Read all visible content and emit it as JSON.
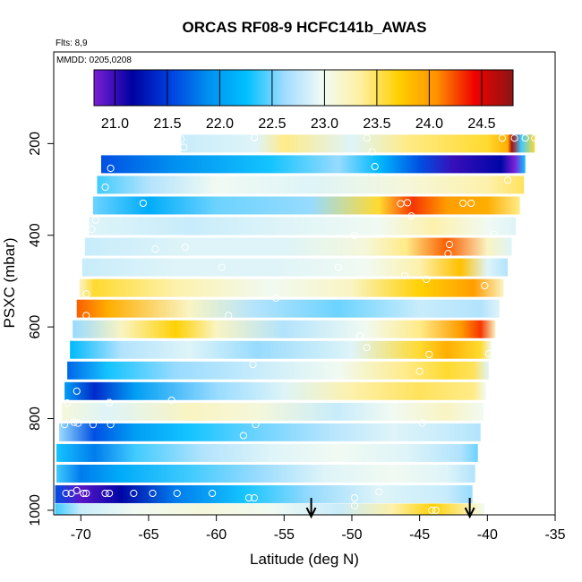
{
  "chart_data": {
    "type": "heatmap",
    "title": "ORCAS RF08-9 HCFC141b_AWAS",
    "flights_label": "Flts: 8,9",
    "dates_label": "MMDD: 0205,0208",
    "xlabel": "Latitude (deg N)",
    "ylabel": "PSXC (mbar)",
    "xlim": [
      -72,
      -35
    ],
    "ylim": [
      1010,
      0
    ],
    "x_ticks": [
      -70,
      -65,
      -60,
      -55,
      -50,
      -45,
      -40,
      -35
    ],
    "x_tick_labels": [
      "-70",
      "-65",
      "-60",
      "-55",
      "-50",
      "-45",
      "-40",
      "-35"
    ],
    "y_ticks": [
      200,
      400,
      600,
      800,
      1000
    ],
    "y_tick_labels": [
      "200",
      "400",
      "600",
      "800",
      "1000"
    ],
    "colorbar": {
      "range": [
        20.8,
        24.8
      ],
      "ticks": [
        21.0,
        21.5,
        22.0,
        22.5,
        23.0,
        23.5,
        24.0,
        24.5
      ],
      "tick_labels": [
        "21.0",
        "21.5",
        "22.0",
        "22.5",
        "23.0",
        "23.5",
        "24.0",
        "24.5"
      ],
      "colors": [
        "#7a1fd6",
        "#0000a0",
        "#0040e0",
        "#0090f0",
        "#00c0ff",
        "#a0dcff",
        "#f0fbf6",
        "#fff0a0",
        "#ffd000",
        "#ff9000",
        "#f00000",
        "#8b1515"
      ]
    },
    "arrow_markers_lat": [
      -53,
      -41.3
    ],
    "layers": [
      {
        "p": 200,
        "lat_range": [
          -62.6,
          -36.5
        ],
        "points": [
          [
            -62.6,
            22.8
          ],
          [
            -57,
            22.9
          ],
          [
            -55,
            23.4
          ],
          [
            -50,
            22.9
          ],
          [
            -46,
            23.4
          ],
          [
            -40,
            23.6
          ],
          [
            -38.5,
            23.9
          ],
          [
            -38.2,
            24.7
          ],
          [
            -37.5,
            22.4
          ],
          [
            -36.5,
            23.6
          ]
        ]
      },
      {
        "p": 245,
        "lat_range": [
          -68.5,
          -37.2
        ],
        "points": [
          [
            -68.5,
            21.6
          ],
          [
            -63,
            21.9
          ],
          [
            -56,
            22.3
          ],
          [
            -51,
            22.6
          ],
          [
            -48,
            22.2
          ],
          [
            -45,
            21.6
          ],
          [
            -42.5,
            21.0
          ],
          [
            -39,
            21.2
          ],
          [
            -38,
            20.8
          ],
          [
            -37.2,
            22.3
          ]
        ]
      },
      {
        "p": 290,
        "lat_range": [
          -68.8,
          -37.3
        ],
        "points": [
          [
            -68.8,
            22.4
          ],
          [
            -65,
            22.7
          ],
          [
            -60,
            23.0
          ],
          [
            -53,
            22.9
          ],
          [
            -46,
            23.1
          ],
          [
            -40,
            23.3
          ],
          [
            -37.3,
            23.5
          ]
        ]
      },
      {
        "p": 335,
        "lat_range": [
          -69.1,
          -37.6
        ],
        "points": [
          [
            -69.1,
            22.5
          ],
          [
            -65,
            22.1
          ],
          [
            -60,
            22.5
          ],
          [
            -53,
            22.6
          ],
          [
            -48,
            23.6
          ],
          [
            -45.5,
            24.3
          ],
          [
            -43,
            24.0
          ],
          [
            -40,
            23.9
          ],
          [
            -37.6,
            23.4
          ]
        ]
      },
      {
        "p": 380,
        "lat_range": [
          -69.4,
          -37.9
        ],
        "points": [
          [
            -69.4,
            22.9
          ],
          [
            -62,
            22.8
          ],
          [
            -55,
            22.9
          ],
          [
            -48,
            23.0
          ],
          [
            -44,
            23.3
          ],
          [
            -40,
            23.0
          ],
          [
            -37.9,
            22.9
          ]
        ]
      },
      {
        "p": 425,
        "lat_range": [
          -69.7,
          -38.2
        ],
        "points": [
          [
            -69.7,
            22.8
          ],
          [
            -62,
            22.9
          ],
          [
            -55,
            22.9
          ],
          [
            -49,
            23.1
          ],
          [
            -46,
            23.4
          ],
          [
            -43,
            24.2
          ],
          [
            -40,
            23.2
          ],
          [
            -38.2,
            22.9
          ]
        ]
      },
      {
        "p": 470,
        "lat_range": [
          -69.9,
          -38.5
        ],
        "points": [
          [
            -69.9,
            22.8
          ],
          [
            -63,
            22.9
          ],
          [
            -56,
            22.9
          ],
          [
            -49,
            23.0
          ],
          [
            -45,
            23.3
          ],
          [
            -42,
            23.8
          ],
          [
            -40,
            22.9
          ],
          [
            -38.5,
            22.7
          ]
        ]
      },
      {
        "p": 515,
        "lat_range": [
          -70.1,
          -38.8
        ],
        "points": [
          [
            -70.1,
            23.2
          ],
          [
            -69,
            23.6
          ],
          [
            -63,
            23.3
          ],
          [
            -56,
            23.0
          ],
          [
            -50,
            23.2
          ],
          [
            -45,
            23.7
          ],
          [
            -41,
            24.0
          ],
          [
            -38.8,
            23.2
          ]
        ]
      },
      {
        "p": 560,
        "lat_range": [
          -70.3,
          -39.1
        ],
        "points": [
          [
            -70.3,
            24.2
          ],
          [
            -68,
            23.9
          ],
          [
            -62,
            23.2
          ],
          [
            -57,
            22.7
          ],
          [
            -51,
            22.5
          ],
          [
            -45,
            22.8
          ],
          [
            -40.5,
            22.7
          ],
          [
            -39.1,
            22.9
          ]
        ]
      },
      {
        "p": 605,
        "lat_range": [
          -70.6,
          -39.4
        ],
        "points": [
          [
            -70.6,
            22.6
          ],
          [
            -67,
            23.2
          ],
          [
            -63,
            23.7
          ],
          [
            -60,
            23.2
          ],
          [
            -55,
            22.7
          ],
          [
            -49,
            23.0
          ],
          [
            -45,
            23.4
          ],
          [
            -42,
            24.0
          ],
          [
            -40.5,
            24.3
          ],
          [
            -39.4,
            23.2
          ]
        ]
      },
      {
        "p": 650,
        "lat_range": [
          -70.8,
          -39.7
        ],
        "points": [
          [
            -70.8,
            22.2
          ],
          [
            -67,
            22.7
          ],
          [
            -62,
            22.9
          ],
          [
            -57,
            22.6
          ],
          [
            -50,
            22.9
          ],
          [
            -45,
            23.6
          ],
          [
            -43,
            23.9
          ],
          [
            -40.5,
            23.6
          ],
          [
            -39.7,
            23.0
          ]
        ]
      },
      {
        "p": 695,
        "lat_range": [
          -71.0,
          -39.9
        ],
        "points": [
          [
            -71.0,
            21.7
          ],
          [
            -68,
            22.3
          ],
          [
            -63,
            22.6
          ],
          [
            -57,
            22.8
          ],
          [
            -51,
            23.0
          ],
          [
            -46,
            23.4
          ],
          [
            -43,
            23.6
          ],
          [
            -41,
            23.5
          ],
          [
            -39.9,
            22.9
          ]
        ]
      },
      {
        "p": 740,
        "lat_range": [
          -71.2,
          -40.1
        ],
        "points": [
          [
            -71.2,
            22.0
          ],
          [
            -69,
            21.4
          ],
          [
            -66,
            22.0
          ],
          [
            -60,
            22.6
          ],
          [
            -55,
            22.9
          ],
          [
            -50,
            23.3
          ],
          [
            -45,
            23.5
          ],
          [
            -41,
            23.4
          ],
          [
            -40.1,
            23.0
          ]
        ]
      },
      {
        "p": 785,
        "lat_range": [
          -71.4,
          -40.3
        ],
        "points": [
          [
            -71.4,
            23.1
          ],
          [
            -68,
            22.9
          ],
          [
            -62,
            23.2
          ],
          [
            -57,
            23.1
          ],
          [
            -51,
            22.8
          ],
          [
            -47,
            23.0
          ],
          [
            -43,
            23.2
          ],
          [
            -40.3,
            23.0
          ]
        ]
      },
      {
        "p": 830,
        "lat_range": [
          -71.6,
          -40.5
        ],
        "points": [
          [
            -71.6,
            22.6
          ],
          [
            -69,
            21.6
          ],
          [
            -66,
            22.0
          ],
          [
            -62,
            22.3
          ],
          [
            -57,
            22.5
          ],
          [
            -52,
            22.7
          ],
          [
            -47,
            22.9
          ],
          [
            -43,
            22.8
          ],
          [
            -40.5,
            22.7
          ]
        ]
      },
      {
        "p": 875,
        "lat_range": [
          -71.8,
          -40.7
        ],
        "points": [
          [
            -71.8,
            22.3
          ],
          [
            -69,
            21.8
          ],
          [
            -66,
            22.4
          ],
          [
            -61,
            22.7
          ],
          [
            -56,
            22.9
          ],
          [
            -51,
            23.0
          ],
          [
            -46,
            22.9
          ],
          [
            -42,
            22.7
          ],
          [
            -40.7,
            22.5
          ]
        ]
      },
      {
        "p": 920,
        "lat_range": [
          -71.8,
          -40.9
        ],
        "points": [
          [
            -71.8,
            22.4
          ],
          [
            -70,
            21.8
          ],
          [
            -67,
            22.1
          ],
          [
            -62,
            22.4
          ],
          [
            -57,
            22.6
          ],
          [
            -52,
            22.9
          ],
          [
            -47,
            23.0
          ],
          [
            -43,
            22.9
          ],
          [
            -40.9,
            22.7
          ]
        ]
      },
      {
        "p": 965,
        "lat_range": [
          -71.9,
          -41.1
        ],
        "points": [
          [
            -71.9,
            21.6
          ],
          [
            -70,
            20.9
          ],
          [
            -67,
            21.2
          ],
          [
            -63,
            21.8
          ],
          [
            -58,
            22.3
          ],
          [
            -53,
            22.6
          ],
          [
            -48,
            22.9
          ],
          [
            -43,
            22.8
          ],
          [
            -41.1,
            22.6
          ]
        ]
      },
      {
        "p": 1005,
        "lat_range": [
          -71.9,
          -40.2
        ],
        "points": [
          [
            -71.9,
            22.4
          ],
          [
            -70,
            22.8
          ],
          [
            -66,
            23.0
          ],
          [
            -61,
            23.1
          ],
          [
            -56,
            23.0
          ],
          [
            -51,
            22.8
          ],
          [
            -47,
            23.3
          ],
          [
            -44,
            23.7
          ],
          [
            -41,
            23.2
          ],
          [
            -40.2,
            23.0
          ]
        ]
      }
    ],
    "samples": [
      {
        "lat": -62.6,
        "p": 190
      },
      {
        "lat": -62.4,
        "p": 208
      },
      {
        "lat": -57.2,
        "p": 187
      },
      {
        "lat": -48.9,
        "p": 188
      },
      {
        "lat": -38.9,
        "p": 188
      },
      {
        "lat": -38.0,
        "p": 188
      },
      {
        "lat": -37.2,
        "p": 188
      },
      {
        "lat": -36.5,
        "p": 188
      },
      {
        "lat": -35.8,
        "p": 188
      },
      {
        "lat": -67.7,
        "p": 216
      },
      {
        "lat": -48.5,
        "p": 218
      },
      {
        "lat": -67.8,
        "p": 254
      },
      {
        "lat": -48.3,
        "p": 250
      },
      {
        "lat": -68.2,
        "p": 295
      },
      {
        "lat": -38.5,
        "p": 280
      },
      {
        "lat": -65.4,
        "p": 330
      },
      {
        "lat": -45.9,
        "p": 329
      },
      {
        "lat": -46.4,
        "p": 331
      },
      {
        "lat": -41.8,
        "p": 330
      },
      {
        "lat": -41.2,
        "p": 330
      },
      {
        "lat": -68.9,
        "p": 367
      },
      {
        "lat": -45.6,
        "p": 358
      },
      {
        "lat": -69.2,
        "p": 387
      },
      {
        "lat": -49.8,
        "p": 400
      },
      {
        "lat": -39.5,
        "p": 398
      },
      {
        "lat": -42.8,
        "p": 420
      },
      {
        "lat": -64.5,
        "p": 430
      },
      {
        "lat": -62.3,
        "p": 426
      },
      {
        "lat": -42.9,
        "p": 440
      },
      {
        "lat": -59.6,
        "p": 470
      },
      {
        "lat": -51.0,
        "p": 470
      },
      {
        "lat": -46.1,
        "p": 488
      },
      {
        "lat": -44.5,
        "p": 496
      },
      {
        "lat": -40.2,
        "p": 510
      },
      {
        "lat": -69.6,
        "p": 528
      },
      {
        "lat": -55.6,
        "p": 537
      },
      {
        "lat": -69.6,
        "p": 575
      },
      {
        "lat": -59.1,
        "p": 575
      },
      {
        "lat": -38.1,
        "p": 580
      },
      {
        "lat": -49.4,
        "p": 620
      },
      {
        "lat": -48.9,
        "p": 645
      },
      {
        "lat": -44.3,
        "p": 660
      },
      {
        "lat": -39.9,
        "p": 658
      },
      {
        "lat": -57.3,
        "p": 682
      },
      {
        "lat": -45.0,
        "p": 697
      },
      {
        "lat": -70.3,
        "p": 740
      },
      {
        "lat": -71.0,
        "p": 766
      },
      {
        "lat": -67.9,
        "p": 765
      },
      {
        "lat": -63.3,
        "p": 760
      },
      {
        "lat": -70.2,
        "p": 810
      },
      {
        "lat": -70.5,
        "p": 808
      },
      {
        "lat": -71.2,
        "p": 813
      },
      {
        "lat": -69.1,
        "p": 813
      },
      {
        "lat": -67.8,
        "p": 813
      },
      {
        "lat": -57.1,
        "p": 813
      },
      {
        "lat": -44.8,
        "p": 810
      },
      {
        "lat": -58.0,
        "p": 837
      },
      {
        "lat": -70.3,
        "p": 957
      },
      {
        "lat": -70.7,
        "p": 963
      },
      {
        "lat": -71.1,
        "p": 963
      },
      {
        "lat": -69.8,
        "p": 963
      },
      {
        "lat": -69.6,
        "p": 963
      },
      {
        "lat": -68.2,
        "p": 963
      },
      {
        "lat": -67.9,
        "p": 963
      },
      {
        "lat": -66.1,
        "p": 963
      },
      {
        "lat": -64.7,
        "p": 963
      },
      {
        "lat": -62.9,
        "p": 963
      },
      {
        "lat": -60.3,
        "p": 963
      },
      {
        "lat": -57.6,
        "p": 973
      },
      {
        "lat": -57.2,
        "p": 973
      },
      {
        "lat": -49.8,
        "p": 973
      },
      {
        "lat": -48.0,
        "p": 960
      },
      {
        "lat": -49.8,
        "p": 990
      },
      {
        "lat": -44.1,
        "p": 1000
      },
      {
        "lat": -43.8,
        "p": 1000
      },
      {
        "lat": -40.0,
        "p": 1007
      }
    ]
  }
}
